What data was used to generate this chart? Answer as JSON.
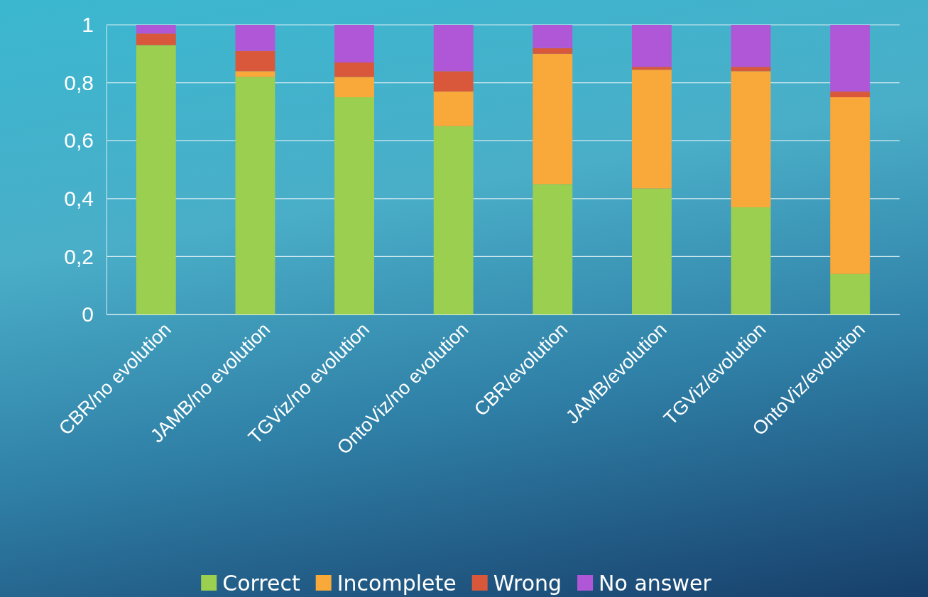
{
  "chart_data": {
    "type": "bar",
    "stacked": true,
    "categories": [
      "CBR/no evolution",
      "JAMB/no evolution",
      "TGViz/no evolution",
      "OntoViz/no evolution",
      "CBR/evolution",
      "JAMB/evolution",
      "TGViz/evolution",
      "OntoViz/evolution"
    ],
    "series": [
      {
        "name": "Correct",
        "color": "#9bcf4f",
        "values": [
          0.93,
          0.82,
          0.75,
          0.65,
          0.45,
          0.435,
          0.37,
          0.14
        ]
      },
      {
        "name": "Incomplete",
        "color": "#f9a83a",
        "values": [
          0,
          0.02,
          0.07,
          0.12,
          0.45,
          0.41,
          0.47,
          0.61
        ]
      },
      {
        "name": "Wrong",
        "color": "#d9583b",
        "values": [
          0.04,
          0.07,
          0.05,
          0.07,
          0.02,
          0.01,
          0.015,
          0.02
        ]
      },
      {
        "name": "No answer",
        "color": "#b057d8",
        "values": [
          0.03,
          0.09,
          0.13,
          0.16,
          0.08,
          0.145,
          0.145,
          0.23
        ]
      }
    ],
    "ylim": [
      0,
      1
    ],
    "yticks": [
      0,
      {
        "value": 0.2,
        "label": "0,2"
      },
      {
        "value": 0.4,
        "label": "0,4"
      },
      {
        "value": 0.6,
        "label": "0,6"
      },
      {
        "value": 0.8,
        "label": "0,8"
      },
      1
    ],
    "grid": "y",
    "legend": "bottom"
  }
}
